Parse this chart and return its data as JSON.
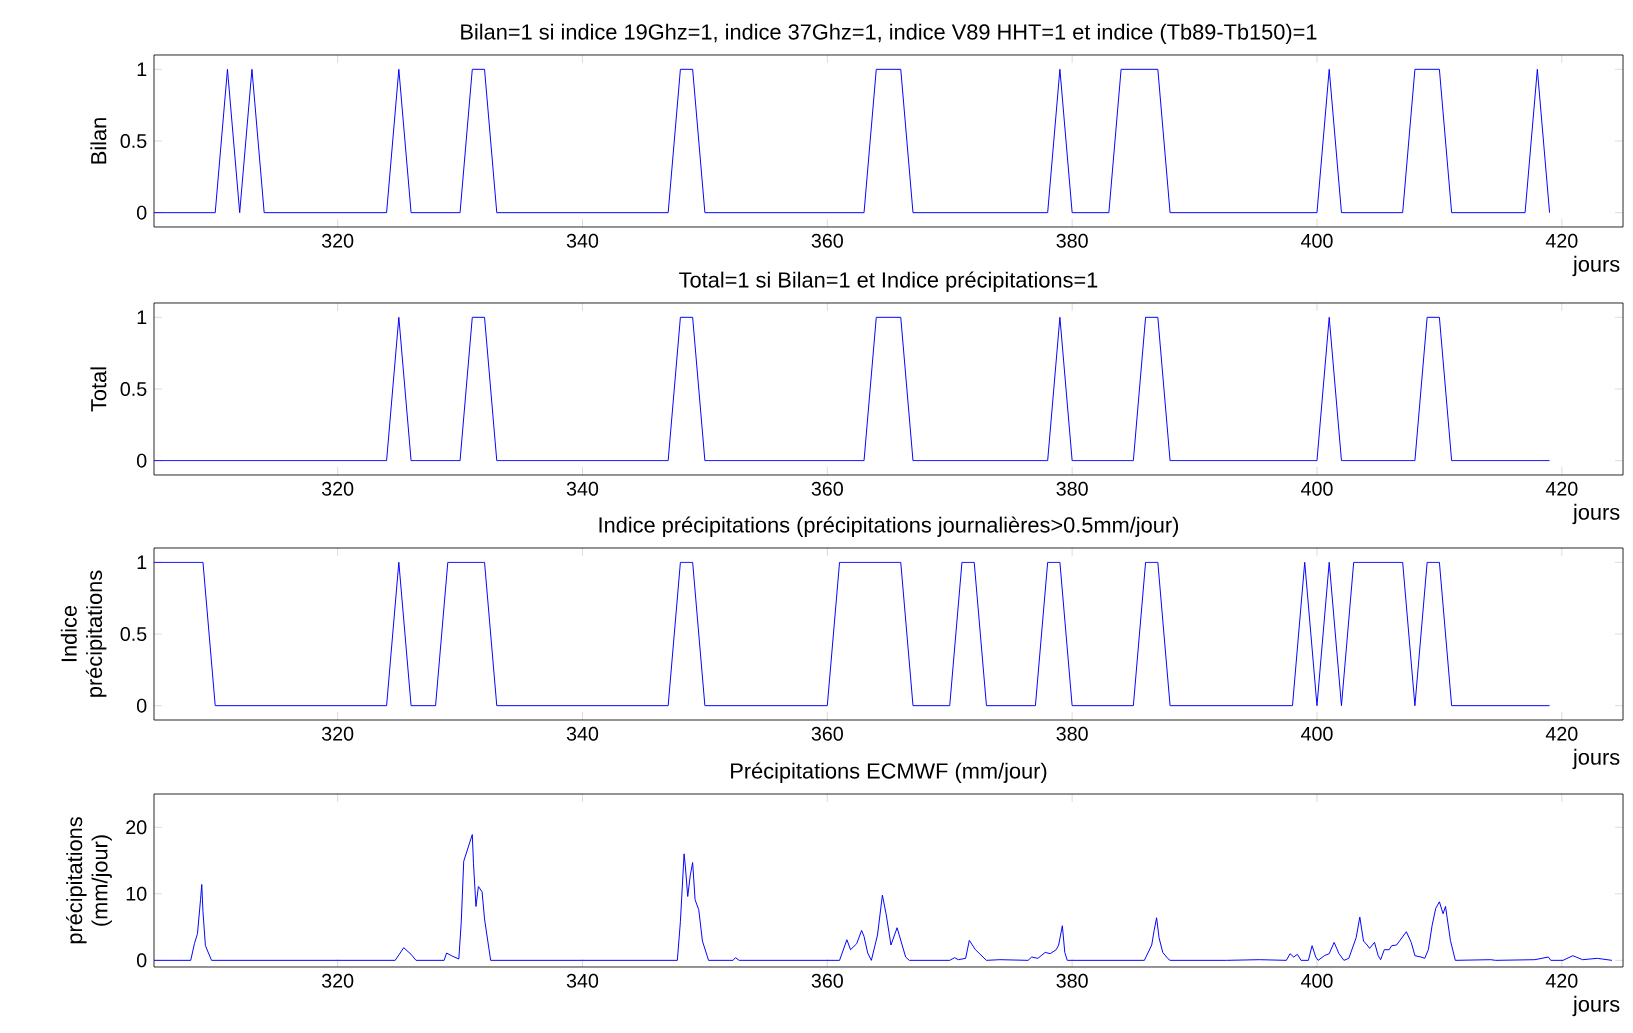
{
  "chart_data": [
    {
      "type": "line",
      "title": "Bilan=1 si indice 19Ghz=1, indice 37Ghz=1, indice V89 HHT=1 et indice (Tb89-Tb150)=1",
      "ylabel": "Bilan",
      "xlabel": "jours",
      "xlim": [
        305,
        425
      ],
      "ylim": [
        -0.1,
        1.1
      ],
      "xticks": [
        320,
        340,
        360,
        380,
        400,
        420
      ],
      "yticks": [
        0,
        0.5,
        1
      ],
      "series": [
        {
          "color": "#0000ff",
          "x": [
            305,
            310,
            311,
            312,
            313,
            314,
            324,
            325,
            326,
            330,
            331,
            332,
            333,
            347,
            348,
            349,
            350,
            363,
            364,
            366,
            367,
            378,
            379,
            380,
            383,
            384,
            387,
            388,
            400,
            401,
            402,
            407,
            408,
            410,
            411,
            417,
            418,
            419
          ],
          "values": [
            0,
            0,
            1,
            0,
            1,
            0,
            0,
            1,
            0,
            0,
            1,
            1,
            0,
            0,
            1,
            1,
            0,
            0,
            1,
            1,
            0,
            0,
            1,
            0,
            0,
            1,
            1,
            0,
            0,
            1,
            0,
            0,
            1,
            1,
            0,
            0,
            1,
            0
          ]
        }
      ]
    },
    {
      "type": "line",
      "title": "Total=1 si Bilan=1 et Indice précipitations=1",
      "ylabel": "Total",
      "xlabel": "jours",
      "xlim": [
        305,
        425
      ],
      "ylim": [
        -0.1,
        1.1
      ],
      "xticks": [
        320,
        340,
        360,
        380,
        400,
        420
      ],
      "yticks": [
        0,
        0.5,
        1
      ],
      "series": [
        {
          "color": "#0000ff",
          "x": [
            305,
            324,
            325,
            326,
            330,
            331,
            332,
            333,
            347,
            348,
            349,
            350,
            363,
            364,
            366,
            367,
            378,
            379,
            380,
            385,
            386,
            387,
            388,
            400,
            401,
            402,
            408,
            409,
            410,
            411,
            419
          ],
          "values": [
            0,
            0,
            1,
            0,
            0,
            1,
            1,
            0,
            0,
            1,
            1,
            0,
            0,
            1,
            1,
            0,
            0,
            1,
            0,
            0,
            1,
            1,
            0,
            0,
            1,
            0,
            0,
            1,
            1,
            0,
            0
          ]
        }
      ]
    },
    {
      "type": "line",
      "title": "Indice précipitations (précipitations journalières>0.5mm/jour)",
      "ylabel": "Indice précipitations",
      "xlabel": "jours",
      "xlim": [
        305,
        425
      ],
      "ylim": [
        -0.1,
        1.1
      ],
      "xticks": [
        320,
        340,
        360,
        380,
        400,
        420
      ],
      "yticks": [
        0,
        0.5,
        1
      ],
      "series": [
        {
          "color": "#0000ff",
          "x": [
            305,
            309,
            310,
            324,
            325,
            326,
            328,
            329,
            332,
            333,
            347,
            348,
            349,
            350,
            360,
            361,
            366,
            367,
            370,
            371,
            372,
            373,
            377,
            378,
            379,
            380,
            385,
            386,
            387,
            388,
            398,
            399,
            400,
            401,
            402,
            403,
            407,
            408,
            409,
            410,
            411,
            419
          ],
          "values": [
            1,
            1,
            0,
            0,
            1,
            0,
            0,
            1,
            1,
            0,
            0,
            1,
            1,
            0,
            0,
            1,
            1,
            0,
            0,
            1,
            1,
            0,
            0,
            1,
            1,
            0,
            0,
            1,
            1,
            0,
            0,
            1,
            0,
            1,
            0,
            1,
            1,
            0,
            1,
            1,
            0,
            0
          ]
        }
      ]
    },
    {
      "type": "line",
      "title": "Précipitations ECMWF (mm/jour)",
      "ylabel": "précipitations (mm/jour)",
      "xlabel": "jours",
      "xlim": [
        305,
        425
      ],
      "ylim": [
        -1,
        25
      ],
      "xticks": [
        320,
        340,
        360,
        380,
        400,
        420
      ],
      "yticks": [
        0,
        10,
        20
      ],
      "series": [
        {
          "color": "#0000ff",
          "x": [
            305,
            308.0,
            308.3,
            308.55,
            308.8,
            308.9,
            309.0,
            309.2,
            309.7,
            324.7,
            325.4,
            326.0,
            326.4,
            328.7,
            328.9,
            329.3,
            329.9,
            330.1,
            330.3,
            330.6,
            330.8,
            331.0,
            331.1,
            331.3,
            331.5,
            331.8,
            332.0,
            332.5,
            347.75,
            348.0,
            348.3,
            348.4,
            348.6,
            348.8,
            349.0,
            349.2,
            349.5,
            349.8,
            350.3,
            352.3,
            352.5,
            352.8,
            361.0,
            361.6,
            361.9,
            362.4,
            362.8,
            363.0,
            363.3,
            363.6,
            364.1,
            364.5,
            364.8,
            365.2,
            365.7,
            366.4,
            366.7,
            370.0,
            370.4,
            370.7,
            371.3,
            371.6,
            372.1,
            373.0,
            374.1,
            376.4,
            376.7,
            377.2,
            377.8,
            378.2,
            378.7,
            378.9,
            379.2,
            379.4,
            379.6,
            384.3,
            385.9,
            386.5,
            386.7,
            386.9,
            387.1,
            387.4,
            387.8,
            388.0,
            392.6,
            395.3,
            397.5,
            397.8,
            398.1,
            398.4,
            398.7,
            399.3,
            399.6,
            399.9,
            400.1,
            400.6,
            401.0,
            401.4,
            401.8,
            402.2,
            402.6,
            403.2,
            403.5,
            403.8,
            404.1,
            404.3,
            404.7,
            405.0,
            405.2,
            405.5,
            405.9,
            406.1,
            406.5,
            406.9,
            407.3,
            407.7,
            408.0,
            408.5,
            408.8,
            409.1,
            409.4,
            409.7,
            410.0,
            410.3,
            410.5,
            410.9,
            411.3,
            414.2,
            414.6,
            417.8,
            418.9,
            419.1,
            420.1,
            420.9,
            421.7,
            422.9,
            424.1
          ],
          "values": [
            0,
            0,
            2.5,
            4,
            9.1,
            11.4,
            7.3,
            2.2,
            0,
            0,
            1.9,
            0.9,
            0,
            0,
            1.1,
            0.7,
            0.2,
            5.8,
            14.9,
            null,
            null,
            18.9,
            14.5,
            8.1,
            11.1,
            10.3,
            6.2,
            0,
            0,
            5.8,
            16.0,
            14.2,
            9.6,
            12.7,
            14.7,
            9.1,
            7.6,
            2.9,
            0,
            0,
            0.4,
            0,
            0,
            3.1,
            1.6,
            2.5,
            4.5,
            3.6,
            1.1,
            0,
            3.8,
            9.8,
            7.0,
            2.3,
            4.9,
            0.5,
            0,
            0,
            0.4,
            0.1,
            0.3,
            3.0,
            1.6,
            0,
            0.1,
            0,
            0.5,
            0.3,
            1.2,
            1.0,
            1.6,
            2.3,
            5.2,
            1.2,
            0,
            0,
            0,
            2.3,
            4.5,
            6.4,
            3.4,
            1.2,
            0.3,
            0,
            0,
            0.1,
            0,
            1.0,
            0.5,
            0.9,
            0,
            0,
            2.2,
            0.5,
            0,
            0.7,
            1.0,
            2.7,
            1.0,
            0,
            0.3,
            3.4,
            6.5,
            2.9,
            2.3,
            1.8,
            2.7,
            0.7,
            0.1,
            1.6,
            1.6,
            2.2,
            2.3,
            3.3,
            4.3,
            2.7,
            0.7,
            0.5,
            0.3,
            1.6,
            5.2,
            7.8,
            8.8,
            7.0,
            8.1,
            3.0,
            0,
            0.1,
            0,
            0.1,
            0.5,
            0,
            0,
            0.7,
            0.1,
            0.3,
            0
          ]
        }
      ]
    }
  ]
}
